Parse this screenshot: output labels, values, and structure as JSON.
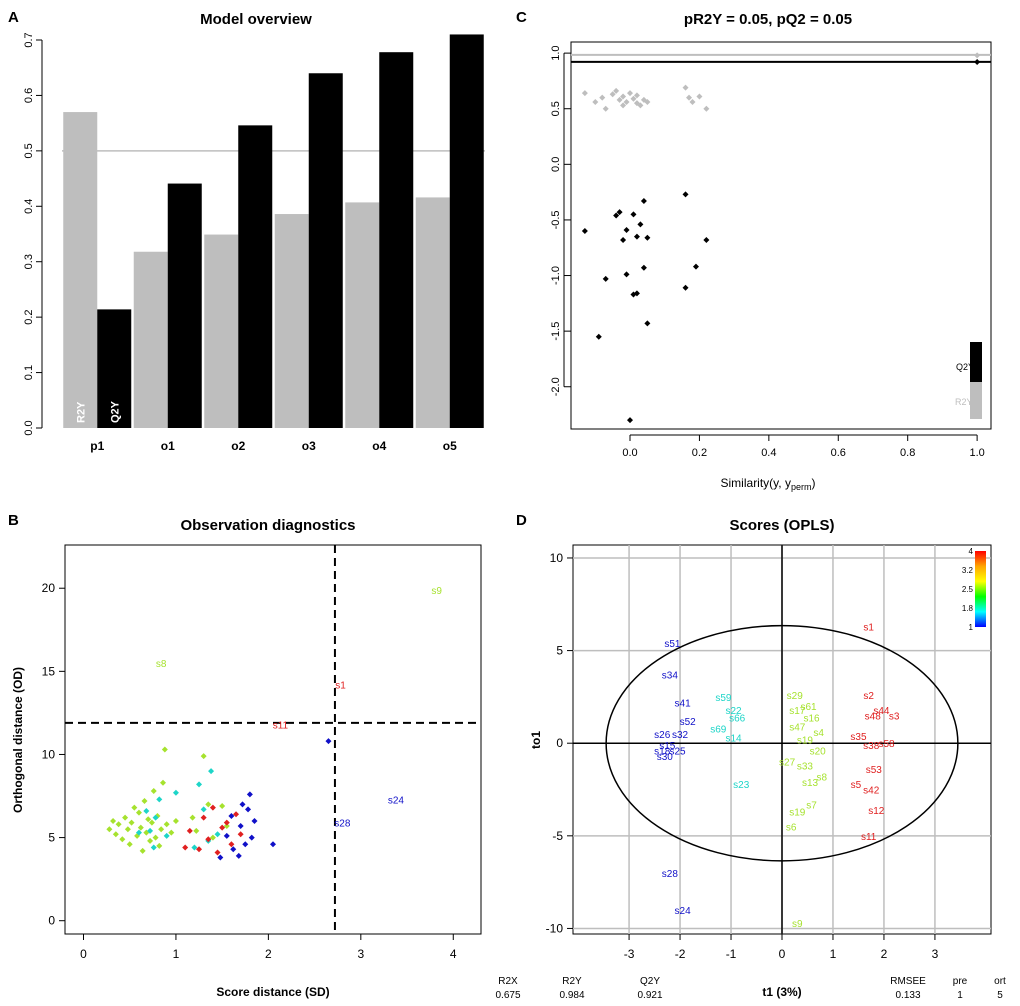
{
  "panel_letters": {
    "a": "A",
    "b": "B",
    "c": "C",
    "d": "D"
  },
  "colors": {
    "gray": "#bebebe",
    "black": "#000000",
    "ref_line": "#bebebe",
    "grid": "#bebebe",
    "palette": [
      "#1010c8",
      "#1dd5c8",
      "#a6e22e",
      "#e02020"
    ],
    "gradient": [
      "#ff0000",
      "#ffa500",
      "#ffff00",
      "#00ff00",
      "#00ffff",
      "#0000ff"
    ]
  },
  "chart_data": [
    {
      "id": "A",
      "type": "bar",
      "title": "Model overview",
      "xlabel": "",
      "ylabel": "",
      "categories": [
        "p1",
        "o1",
        "o2",
        "o3",
        "o4",
        "o5"
      ],
      "series": [
        {
          "name": "R2Y",
          "values": [
            0.57,
            0.318,
            0.349,
            0.386,
            0.407,
            0.416
          ]
        },
        {
          "name": "Q2Y",
          "values": [
            0.214,
            0.441,
            0.546,
            0.64,
            0.678,
            0.71
          ]
        }
      ],
      "bar_labels": [
        "R2Y",
        "Q2Y"
      ],
      "ylim": [
        0,
        0.7
      ],
      "yticks": [
        0.0,
        0.1,
        0.2,
        0.3,
        0.4,
        0.5,
        0.6,
        0.7
      ],
      "reference_line": 0.5
    },
    {
      "id": "B",
      "type": "scatter",
      "title": "Observation diagnostics",
      "xlabel": "Score distance (SD)",
      "ylabel": "Orthogonal distance (OD)",
      "xlim": [
        -0.2,
        4.3
      ],
      "ylim": [
        -0.8,
        22.6
      ],
      "xticks": [
        0,
        1,
        2,
        3,
        4
      ],
      "yticks": [
        0,
        5,
        10,
        15,
        20
      ],
      "thresholds": {
        "sd": 2.72,
        "od": 11.9
      },
      "labeled_points": [
        {
          "label": "s9",
          "x": 3.82,
          "y": 19.9,
          "color_index": 2
        },
        {
          "label": "s8",
          "x": 0.84,
          "y": 15.5,
          "color_index": 2
        },
        {
          "label": "s1",
          "x": 2.78,
          "y": 14.2,
          "color_index": 3
        },
        {
          "label": "s11",
          "x": 2.13,
          "y": 11.8,
          "color_index": 3
        },
        {
          "label": "s24",
          "x": 3.38,
          "y": 7.3,
          "color_index": 0
        },
        {
          "label": "s28",
          "x": 2.8,
          "y": 5.9,
          "color_index": 0
        }
      ],
      "points": [
        {
          "x": 0.28,
          "y": 5.5,
          "c": 2
        },
        {
          "x": 0.32,
          "y": 6.0,
          "c": 2
        },
        {
          "x": 0.35,
          "y": 5.2,
          "c": 2
        },
        {
          "x": 0.38,
          "y": 5.8,
          "c": 2
        },
        {
          "x": 0.42,
          "y": 4.9,
          "c": 2
        },
        {
          "x": 0.45,
          "y": 6.2,
          "c": 2
        },
        {
          "x": 0.48,
          "y": 5.5,
          "c": 2
        },
        {
          "x": 0.5,
          "y": 4.6,
          "c": 2
        },
        {
          "x": 0.52,
          "y": 5.9,
          "c": 2
        },
        {
          "x": 0.55,
          "y": 6.8,
          "c": 2
        },
        {
          "x": 0.58,
          "y": 5.1,
          "c": 2
        },
        {
          "x": 0.6,
          "y": 6.5,
          "c": 2
        },
        {
          "x": 0.62,
          "y": 5.6,
          "c": 2
        },
        {
          "x": 0.64,
          "y": 4.2,
          "c": 2
        },
        {
          "x": 0.66,
          "y": 7.2,
          "c": 2
        },
        {
          "x": 0.68,
          "y": 5.3,
          "c": 2
        },
        {
          "x": 0.7,
          "y": 6.1,
          "c": 2
        },
        {
          "x": 0.72,
          "y": 4.8,
          "c": 2
        },
        {
          "x": 0.74,
          "y": 5.9,
          "c": 2
        },
        {
          "x": 0.76,
          "y": 7.8,
          "c": 2
        },
        {
          "x": 0.78,
          "y": 5.0,
          "c": 2
        },
        {
          "x": 0.8,
          "y": 6.3,
          "c": 2
        },
        {
          "x": 0.82,
          "y": 4.5,
          "c": 2
        },
        {
          "x": 0.84,
          "y": 5.5,
          "c": 2
        },
        {
          "x": 0.86,
          "y": 8.3,
          "c": 2
        },
        {
          "x": 0.88,
          "y": 10.3,
          "c": 2
        },
        {
          "x": 0.9,
          "y": 5.8,
          "c": 2
        },
        {
          "x": 0.95,
          "y": 5.3,
          "c": 2
        },
        {
          "x": 1.0,
          "y": 6.0,
          "c": 2
        },
        {
          "x": 1.18,
          "y": 6.2,
          "c": 2
        },
        {
          "x": 1.22,
          "y": 5.4,
          "c": 2
        },
        {
          "x": 1.3,
          "y": 9.9,
          "c": 2
        },
        {
          "x": 1.35,
          "y": 7.0,
          "c": 2
        },
        {
          "x": 1.4,
          "y": 5.0,
          "c": 2
        },
        {
          "x": 1.5,
          "y": 6.9,
          "c": 2
        },
        {
          "x": 1.55,
          "y": 5.7,
          "c": 2
        },
        {
          "x": 0.6,
          "y": 5.3,
          "c": 1
        },
        {
          "x": 0.68,
          "y": 6.6,
          "c": 1
        },
        {
          "x": 0.72,
          "y": 5.4,
          "c": 1
        },
        {
          "x": 0.76,
          "y": 4.4,
          "c": 1
        },
        {
          "x": 0.78,
          "y": 6.2,
          "c": 1
        },
        {
          "x": 0.82,
          "y": 7.3,
          "c": 1
        },
        {
          "x": 0.9,
          "y": 5.1,
          "c": 1
        },
        {
          "x": 1.0,
          "y": 7.7,
          "c": 1
        },
        {
          "x": 1.2,
          "y": 4.4,
          "c": 1
        },
        {
          "x": 1.25,
          "y": 8.2,
          "c": 1
        },
        {
          "x": 1.3,
          "y": 6.7,
          "c": 1
        },
        {
          "x": 1.35,
          "y": 4.8,
          "c": 1
        },
        {
          "x": 1.38,
          "y": 9.0,
          "c": 1
        },
        {
          "x": 1.45,
          "y": 5.2,
          "c": 1
        },
        {
          "x": 1.1,
          "y": 4.4,
          "c": 3
        },
        {
          "x": 1.15,
          "y": 5.4,
          "c": 3
        },
        {
          "x": 1.25,
          "y": 4.3,
          "c": 3
        },
        {
          "x": 1.3,
          "y": 6.2,
          "c": 3
        },
        {
          "x": 1.35,
          "y": 4.9,
          "c": 3
        },
        {
          "x": 1.4,
          "y": 6.8,
          "c": 3
        },
        {
          "x": 1.45,
          "y": 4.1,
          "c": 3
        },
        {
          "x": 1.5,
          "y": 5.6,
          "c": 3
        },
        {
          "x": 1.55,
          "y": 5.9,
          "c": 3
        },
        {
          "x": 1.6,
          "y": 4.6,
          "c": 3
        },
        {
          "x": 1.65,
          "y": 6.4,
          "c": 3
        },
        {
          "x": 1.7,
          "y": 5.2,
          "c": 3
        },
        {
          "x": 1.48,
          "y": 3.8,
          "c": 0
        },
        {
          "x": 1.55,
          "y": 5.1,
          "c": 0
        },
        {
          "x": 1.6,
          "y": 6.3,
          "c": 0
        },
        {
          "x": 1.62,
          "y": 4.3,
          "c": 0
        },
        {
          "x": 1.68,
          "y": 3.9,
          "c": 0
        },
        {
          "x": 1.7,
          "y": 5.7,
          "c": 0
        },
        {
          "x": 1.72,
          "y": 7.0,
          "c": 0
        },
        {
          "x": 1.75,
          "y": 4.6,
          "c": 0
        },
        {
          "x": 1.78,
          "y": 6.7,
          "c": 0
        },
        {
          "x": 1.8,
          "y": 7.6,
          "c": 0
        },
        {
          "x": 1.82,
          "y": 5.0,
          "c": 0
        },
        {
          "x": 1.85,
          "y": 6.0,
          "c": 0
        },
        {
          "x": 2.05,
          "y": 4.6,
          "c": 0
        },
        {
          "x": 2.65,
          "y": 10.8,
          "c": 0
        }
      ]
    },
    {
      "id": "C",
      "type": "scatter",
      "title": "pR2Y = 0.05, pQ2 = 0.05",
      "xlabel": "Similarity(y, y",
      "xlabel_sub": "perm",
      "xlabel_close": ")",
      "ylabel": "",
      "xlim": [
        -0.17,
        1.04
      ],
      "ylim": [
        -2.38,
        1.1
      ],
      "xticks": [
        0.0,
        0.2,
        0.4,
        0.6,
        0.8,
        1.0
      ],
      "yticks": [
        1.0,
        0.5,
        0.0,
        -0.5,
        -1.0,
        -1.5,
        -2.0
      ],
      "ytick_labels": [
        "1.0",
        "0.5",
        "0.0",
        "-0.5",
        "-1.0",
        "-1.5",
        "-2.0"
      ],
      "hlines": [
        {
          "y": 0.984,
          "series": "R2Y"
        },
        {
          "y": 0.921,
          "series": "Q2Y"
        }
      ],
      "legend": [
        "Q2Y",
        "R2Y"
      ],
      "series": [
        {
          "name": "R2Y",
          "color": "gray",
          "points": [
            {
              "x": -0.13,
              "y": 0.64
            },
            {
              "x": -0.1,
              "y": 0.56
            },
            {
              "x": -0.08,
              "y": 0.6
            },
            {
              "x": -0.07,
              "y": 0.5
            },
            {
              "x": -0.05,
              "y": 0.63
            },
            {
              "x": -0.04,
              "y": 0.66
            },
            {
              "x": -0.03,
              "y": 0.58
            },
            {
              "x": -0.02,
              "y": 0.61
            },
            {
              "x": -0.02,
              "y": 0.53
            },
            {
              "x": -0.01,
              "y": 0.56
            },
            {
              "x": 0.0,
              "y": 0.64
            },
            {
              "x": 0.01,
              "y": 0.59
            },
            {
              "x": 0.02,
              "y": 0.55
            },
            {
              "x": 0.02,
              "y": 0.62
            },
            {
              "x": 0.03,
              "y": 0.53
            },
            {
              "x": 0.04,
              "y": 0.58
            },
            {
              "x": 0.05,
              "y": 0.56
            },
            {
              "x": 0.16,
              "y": 0.69
            },
            {
              "x": 0.17,
              "y": 0.6
            },
            {
              "x": 0.18,
              "y": 0.56
            },
            {
              "x": 0.2,
              "y": 0.61
            },
            {
              "x": 0.22,
              "y": 0.5
            },
            {
              "x": 1.0,
              "y": 0.98
            }
          ]
        },
        {
          "name": "Q2Y",
          "color": "black",
          "points": [
            {
              "x": -0.13,
              "y": -0.6
            },
            {
              "x": -0.09,
              "y": -1.55
            },
            {
              "x": -0.07,
              "y": -1.03
            },
            {
              "x": -0.04,
              "y": -0.46
            },
            {
              "x": -0.03,
              "y": -0.43
            },
            {
              "x": -0.02,
              "y": -0.68
            },
            {
              "x": -0.01,
              "y": -0.99
            },
            {
              "x": -0.01,
              "y": -0.59
            },
            {
              "x": 0.0,
              "y": -2.3
            },
            {
              "x": 0.01,
              "y": -1.17
            },
            {
              "x": 0.01,
              "y": -0.45
            },
            {
              "x": 0.02,
              "y": -0.65
            },
            {
              "x": 0.02,
              "y": -1.16
            },
            {
              "x": 0.03,
              "y": -0.54
            },
            {
              "x": 0.04,
              "y": -0.33
            },
            {
              "x": 0.04,
              "y": -0.93
            },
            {
              "x": 0.05,
              "y": -1.43
            },
            {
              "x": 0.05,
              "y": -0.66
            },
            {
              "x": 0.16,
              "y": -0.27
            },
            {
              "x": 0.16,
              "y": -1.11
            },
            {
              "x": 0.19,
              "y": -0.92
            },
            {
              "x": 0.22,
              "y": -0.68
            },
            {
              "x": 1.0,
              "y": 0.92
            }
          ]
        }
      ]
    },
    {
      "id": "D",
      "type": "scatter",
      "title": "Scores (OPLS)",
      "xlabel": "t1 (3%)",
      "ylabel": "to1",
      "xlim": [
        -4.1,
        4.1
      ],
      "ylim": [
        -10.3,
        10.7
      ],
      "xticks": [
        -3,
        -2,
        -1,
        0,
        1,
        2,
        3
      ],
      "yticks": [
        -10,
        -5,
        0,
        5,
        10
      ],
      "ellipse": {
        "cx": 0.0,
        "cy": 0.0,
        "rx": 3.45,
        "ry": 6.35
      },
      "colorbar_ticks": [
        "4",
        "3.2",
        "2.5",
        "1.8",
        "1"
      ],
      "points": [
        {
          "label": "s1",
          "x": 1.7,
          "y": 6.3,
          "c": 3
        },
        {
          "label": "s2",
          "x": 1.7,
          "y": 2.6,
          "c": 3
        },
        {
          "label": "s44",
          "x": 1.95,
          "y": 1.8,
          "c": 3
        },
        {
          "label": "s48",
          "x": 1.78,
          "y": 1.5,
          "c": 3
        },
        {
          "label": "s3",
          "x": 2.2,
          "y": 1.5,
          "c": 3
        },
        {
          "label": "s35",
          "x": 1.5,
          "y": 0.4,
          "c": 3
        },
        {
          "label": "s38",
          "x": 1.75,
          "y": -0.1,
          "c": 3
        },
        {
          "label": "s58",
          "x": 2.05,
          "y": 0.0,
          "c": 3
        },
        {
          "label": "s53",
          "x": 1.8,
          "y": -1.4,
          "c": 3
        },
        {
          "label": "s5",
          "x": 1.45,
          "y": -2.2,
          "c": 3
        },
        {
          "label": "s42",
          "x": 1.75,
          "y": -2.5,
          "c": 3
        },
        {
          "label": "s12",
          "x": 1.85,
          "y": -3.6,
          "c": 3
        },
        {
          "label": "s11",
          "x": 1.7,
          "y": -5.0,
          "c": 3
        },
        {
          "label": "s29",
          "x": 0.25,
          "y": 2.6,
          "c": 2
        },
        {
          "label": "s61",
          "x": 0.52,
          "y": 2.0,
          "c": 2
        },
        {
          "label": "s17",
          "x": 0.3,
          "y": 1.8,
          "c": 2
        },
        {
          "label": "s16",
          "x": 0.58,
          "y": 1.4,
          "c": 2
        },
        {
          "label": "s4",
          "x": 0.72,
          "y": 0.6,
          "c": 2
        },
        {
          "label": "s47",
          "x": 0.3,
          "y": 0.9,
          "c": 2
        },
        {
          "label": "s19",
          "x": 0.45,
          "y": 0.2,
          "c": 2
        },
        {
          "label": "s20",
          "x": 0.7,
          "y": -0.4,
          "c": 2
        },
        {
          "label": "s27",
          "x": 0.1,
          "y": -1.0,
          "c": 2
        },
        {
          "label": "s33",
          "x": 0.45,
          "y": -1.2,
          "c": 2
        },
        {
          "label": "s8",
          "x": 0.78,
          "y": -1.8,
          "c": 2
        },
        {
          "label": "s13",
          "x": 0.55,
          "y": -2.1,
          "c": 2
        },
        {
          "label": "s7",
          "x": 0.58,
          "y": -3.3,
          "c": 2
        },
        {
          "label": "s19",
          "x": 0.3,
          "y": -3.7,
          "c": 2
        },
        {
          "label": "s6",
          "x": 0.18,
          "y": -4.5,
          "c": 2
        },
        {
          "label": "s9",
          "x": 0.3,
          "y": -9.7,
          "c": 2
        },
        {
          "label": "s59",
          "x": -1.15,
          "y": 2.5,
          "c": 1
        },
        {
          "label": "s22",
          "x": -0.95,
          "y": 1.8,
          "c": 1
        },
        {
          "label": "s66",
          "x": -0.88,
          "y": 1.4,
          "c": 1
        },
        {
          "label": "s69",
          "x": -1.25,
          "y": 0.8,
          "c": 1
        },
        {
          "label": "s14",
          "x": -0.95,
          "y": 0.3,
          "c": 1
        },
        {
          "label": "s23",
          "x": -0.8,
          "y": -2.2,
          "c": 1
        },
        {
          "label": "s51",
          "x": -2.15,
          "y": 5.4,
          "c": 0
        },
        {
          "label": "s34",
          "x": -2.2,
          "y": 3.7,
          "c": 0
        },
        {
          "label": "s41",
          "x": -1.95,
          "y": 2.2,
          "c": 0
        },
        {
          "label": "s52",
          "x": -1.85,
          "y": 1.2,
          "c": 0
        },
        {
          "label": "s26",
          "x": -2.35,
          "y": 0.5,
          "c": 0
        },
        {
          "label": "s32",
          "x": -2.0,
          "y": 0.5,
          "c": 0
        },
        {
          "label": "s15",
          "x": -2.25,
          "y": -0.1,
          "c": 0
        },
        {
          "label": "s18",
          "x": -2.35,
          "y": -0.4,
          "c": 0
        },
        {
          "label": "s25",
          "x": -2.05,
          "y": -0.4,
          "c": 0
        },
        {
          "label": "s30",
          "x": -2.3,
          "y": -0.7,
          "c": 0
        },
        {
          "label": "s28",
          "x": -2.2,
          "y": -7.0,
          "c": 0
        },
        {
          "label": "s24",
          "x": -1.95,
          "y": -9.0,
          "c": 0
        }
      ],
      "summary_table": {
        "headers": [
          "R2X",
          "R2Y",
          "Q2Y",
          "RMSEE",
          "pre",
          "ort"
        ],
        "values": [
          "0.675",
          "0.984",
          "0.921",
          "0.133",
          "1",
          "5"
        ]
      }
    }
  ]
}
